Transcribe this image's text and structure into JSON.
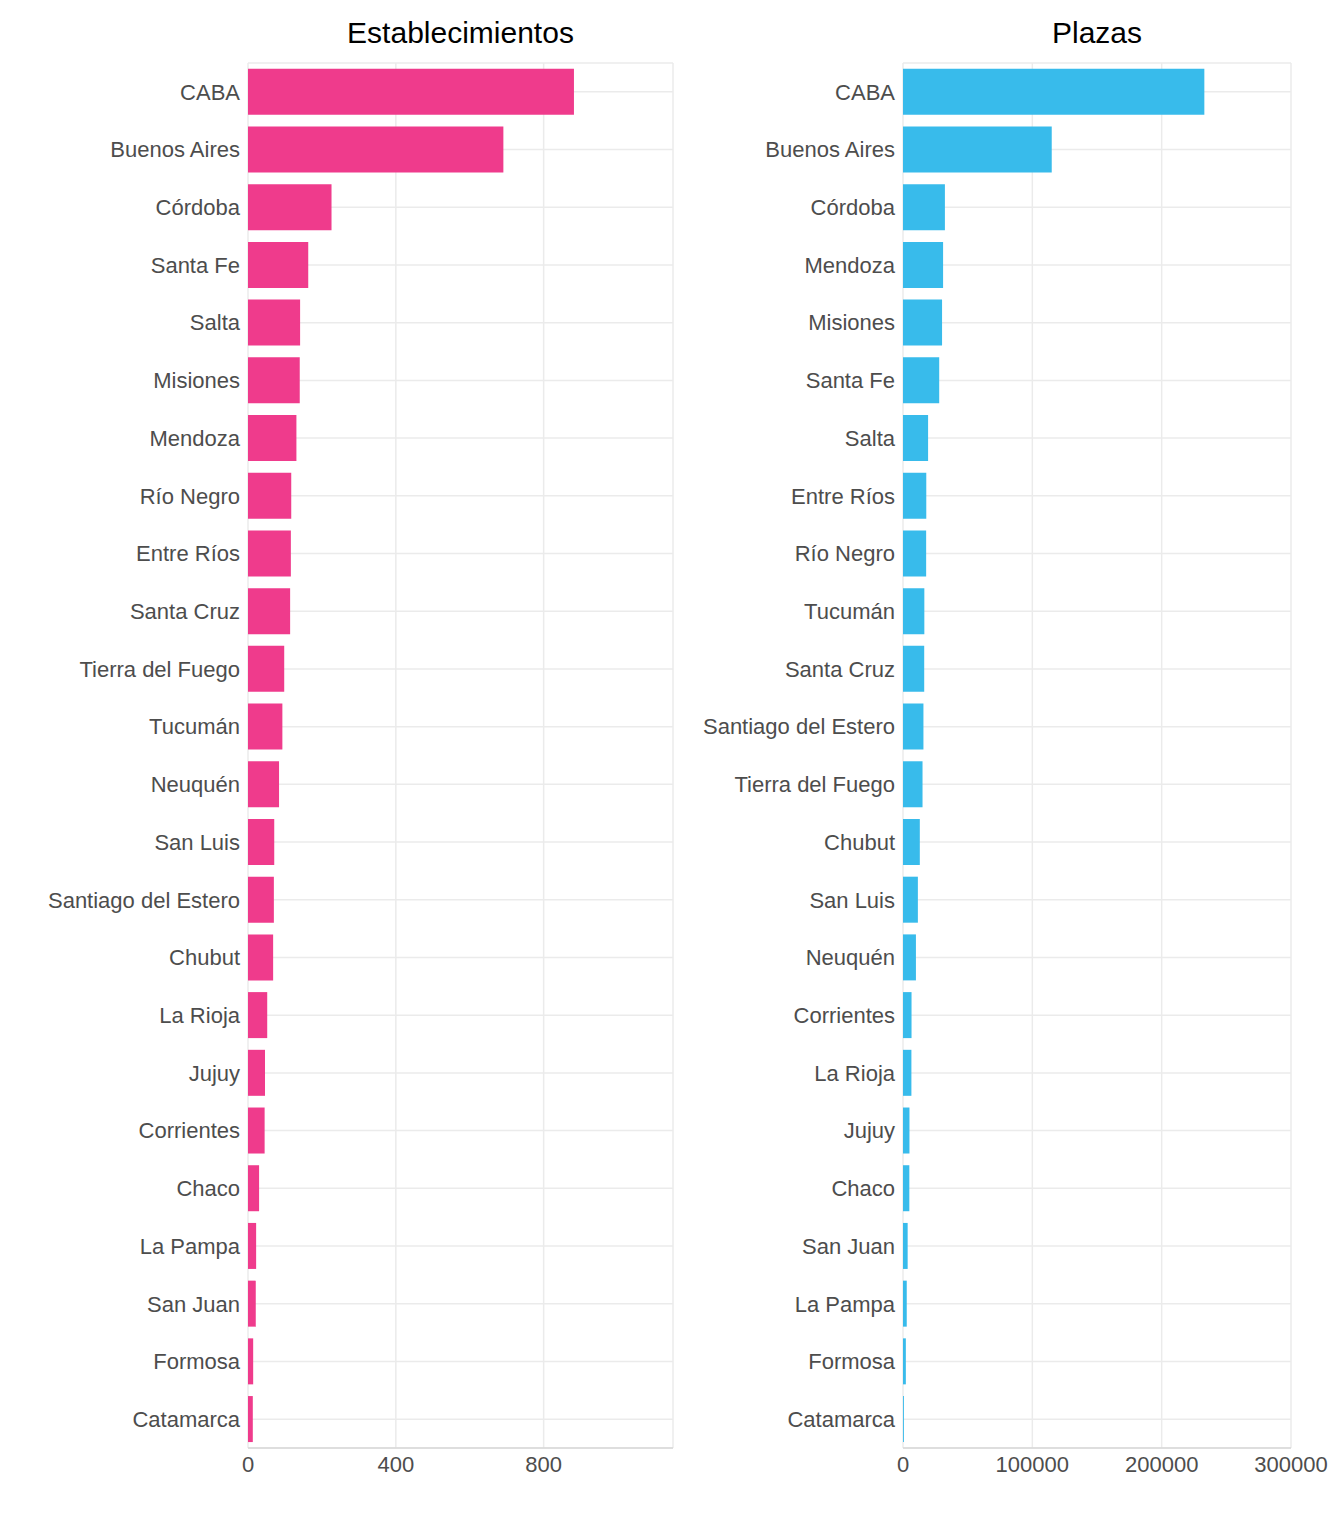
{
  "chart_data": [
    {
      "type": "bar",
      "title": "Establecimientos",
      "orientation": "horizontal",
      "color": "#ef3b8c",
      "grid": true,
      "categories": [
        "CABA",
        "Buenos Aires",
        "Córdoba",
        "Santa Fe",
        "Salta",
        "Misiones",
        "Mendoza",
        "Río Negro",
        "Entre Ríos",
        "Santa Cruz",
        "Tierra del Fuego",
        "Tucumán",
        "Neuquén",
        "San Luis",
        "Santiago del Estero",
        "Chubut",
        "La Rioja",
        "Jujuy",
        "Corrientes",
        "Chaco",
        "La Pampa",
        "San Juan",
        "Formosa",
        "Catamarca"
      ],
      "values": [
        882,
        691,
        226,
        163,
        141,
        140,
        131,
        117,
        116,
        114,
        98,
        93,
        84,
        71,
        70,
        68,
        52,
        46,
        45,
        30,
        22,
        21,
        14,
        13
      ],
      "xlim": [
        0,
        1150
      ],
      "xticks": [
        0,
        400,
        800
      ]
    },
    {
      "type": "bar",
      "title": "Plazas",
      "orientation": "horizontal",
      "color": "#38bbeb",
      "grid": true,
      "categories": [
        "CABA",
        "Buenos Aires",
        "Córdoba",
        "Mendoza",
        "Misiones",
        "Santa Fe",
        "Salta",
        "Entre Ríos",
        "Río Negro",
        "Tucumán",
        "Santa Cruz",
        "Santiago del Estero",
        "Tierra del Fuego",
        "Chubut",
        "San Luis",
        "Neuquén",
        "Corrientes",
        "La Rioja",
        "Jujuy",
        "Chaco",
        "San Juan",
        "La Pampa",
        "Formosa",
        "Catamarca"
      ],
      "values": [
        233000,
        115000,
        32400,
        31000,
        30200,
        28000,
        19400,
        18000,
        17900,
        16500,
        16400,
        15800,
        15100,
        13000,
        11500,
        10000,
        6600,
        6500,
        5000,
        4900,
        3600,
        2900,
        2200,
        700
      ],
      "xlim": [
        0,
        300000
      ],
      "xticks": [
        0,
        100000,
        200000,
        300000
      ]
    }
  ]
}
